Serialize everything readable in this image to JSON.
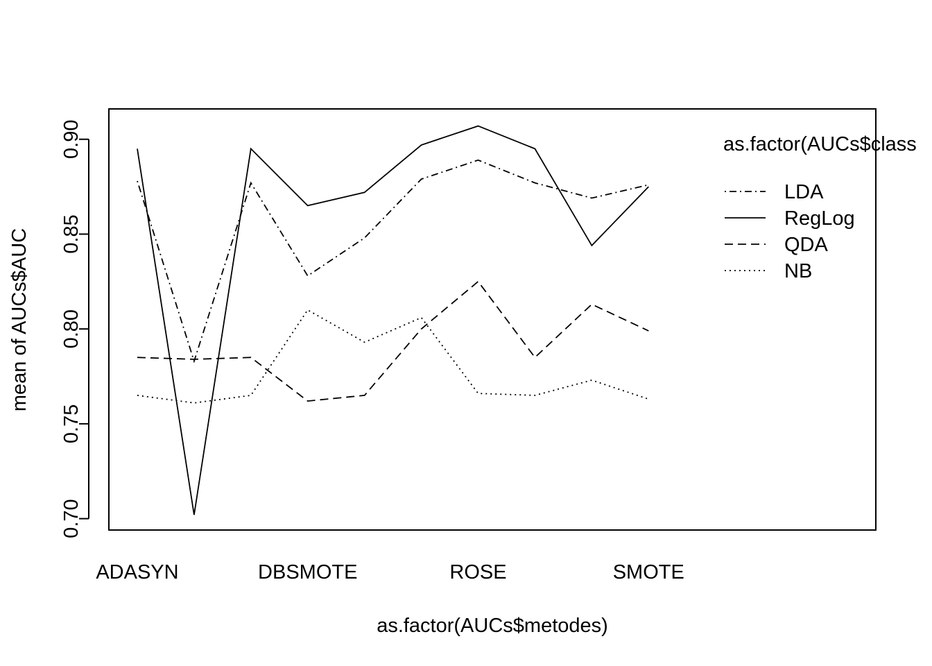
{
  "chart_data": {
    "type": "line",
    "title": "",
    "xlabel": "as.factor(AUCs$metodes)",
    "ylabel": "mean of  AUCs$AUC",
    "categories": [
      "ADASYN",
      "",
      "",
      "DBSMOTE",
      "",
      "",
      "ROSE",
      "",
      "",
      "SMOTE"
    ],
    "x_tick_labels": [
      "ADASYN",
      "DBSMOTE",
      "ROSE",
      "SMOTE"
    ],
    "x_tick_positions": [
      1,
      4,
      7,
      10
    ],
    "xlim": [
      0.5,
      14
    ],
    "ylim": [
      0.694,
      0.916
    ],
    "y_ticks": [
      0.7,
      0.75,
      0.8,
      0.85,
      0.9
    ],
    "y_tick_labels": [
      "0.70",
      "0.75",
      "0.80",
      "0.85",
      "0.90"
    ],
    "grid": false,
    "legend": {
      "title": "as.factor(AUCs$class",
      "placement": "top-right"
    },
    "series": [
      {
        "name": "LDA",
        "dash": "dotdash",
        "values": [
          0.878,
          0.783,
          0.877,
          0.828,
          0.848,
          0.879,
          0.889,
          0.877,
          0.869,
          0.876
        ]
      },
      {
        "name": "RegLog",
        "dash": "solid",
        "values": [
          0.895,
          0.702,
          0.895,
          0.865,
          0.872,
          0.897,
          0.907,
          0.895,
          0.844,
          0.875
        ]
      },
      {
        "name": "QDA",
        "dash": "dashed",
        "values": [
          0.785,
          0.784,
          0.785,
          0.762,
          0.765,
          0.8,
          0.825,
          0.785,
          0.813,
          0.799
        ]
      },
      {
        "name": "NB",
        "dash": "dotted",
        "values": [
          0.765,
          0.761,
          0.765,
          0.81,
          0.793,
          0.806,
          0.766,
          0.765,
          0.773,
          0.763
        ]
      }
    ]
  }
}
